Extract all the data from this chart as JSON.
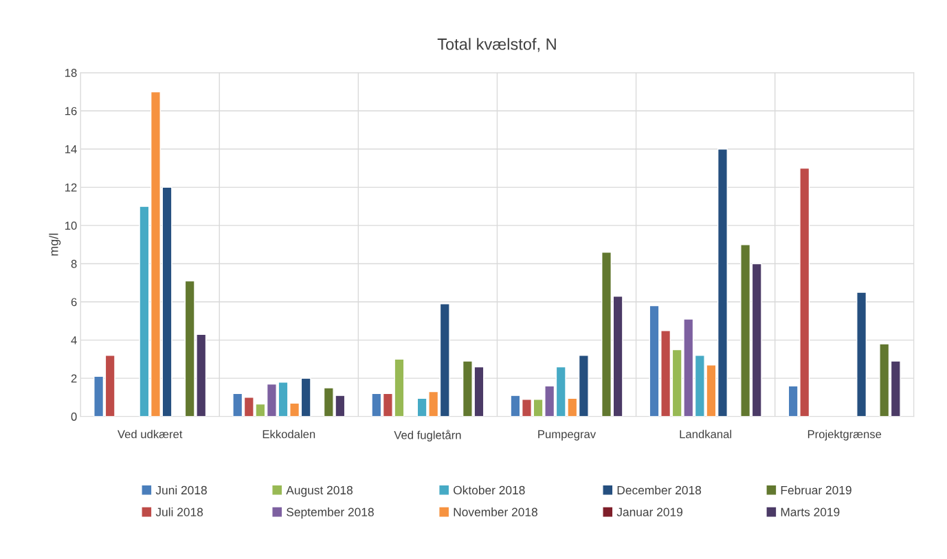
{
  "chart_data": {
    "type": "bar",
    "title": "Total kvælstof, N",
    "ylabel": "mg/l",
    "categories": [
      "Ved udkæret",
      "Ekkodalen",
      "Ved fugletårn",
      "Pumpegrav",
      "Landkanal",
      "Projektgrænse"
    ],
    "series": [
      {
        "name": "Juni 2018",
        "color": "#4a7ebb",
        "values": [
          2.1,
          1.2,
          1.2,
          1.1,
          5.8,
          1.6
        ]
      },
      {
        "name": "Juli 2018",
        "color": "#be4b48",
        "values": [
          3.2,
          1.0,
          1.2,
          0.9,
          4.5,
          13
        ]
      },
      {
        "name": "August 2018",
        "color": "#98b954",
        "values": [
          null,
          0.65,
          3.0,
          0.9,
          3.5,
          null
        ]
      },
      {
        "name": "September 2018",
        "color": "#7d60a0",
        "values": [
          null,
          1.7,
          null,
          1.6,
          5.1,
          null
        ]
      },
      {
        "name": "Oktober 2018",
        "color": "#46aac5",
        "values": [
          11,
          1.8,
          0.95,
          2.6,
          3.2,
          null
        ]
      },
      {
        "name": "November 2018",
        "color": "#f69240",
        "values": [
          17,
          0.7,
          1.3,
          0.95,
          2.7,
          null
        ]
      },
      {
        "name": "December 2018",
        "color": "#254f7f",
        "values": [
          12,
          2.0,
          5.9,
          3.2,
          14,
          6.5
        ]
      },
      {
        "name": "Januar 2019",
        "color": "#7f1f2a",
        "values": [
          null,
          null,
          null,
          null,
          null,
          null
        ]
      },
      {
        "name": "Februar 2019",
        "color": "#62782f",
        "values": [
          7.1,
          1.5,
          2.9,
          8.6,
          9,
          3.8
        ]
      },
      {
        "name": "Marts 2019",
        "color": "#4b3a66",
        "values": [
          4.3,
          1.1,
          2.6,
          6.3,
          8,
          2.9
        ]
      }
    ],
    "ylim": [
      0,
      18
    ],
    "yticks": [
      0,
      2,
      4,
      6,
      8,
      10,
      12,
      14,
      16,
      18
    ],
    "grid": true,
    "legend": "bottom"
  }
}
